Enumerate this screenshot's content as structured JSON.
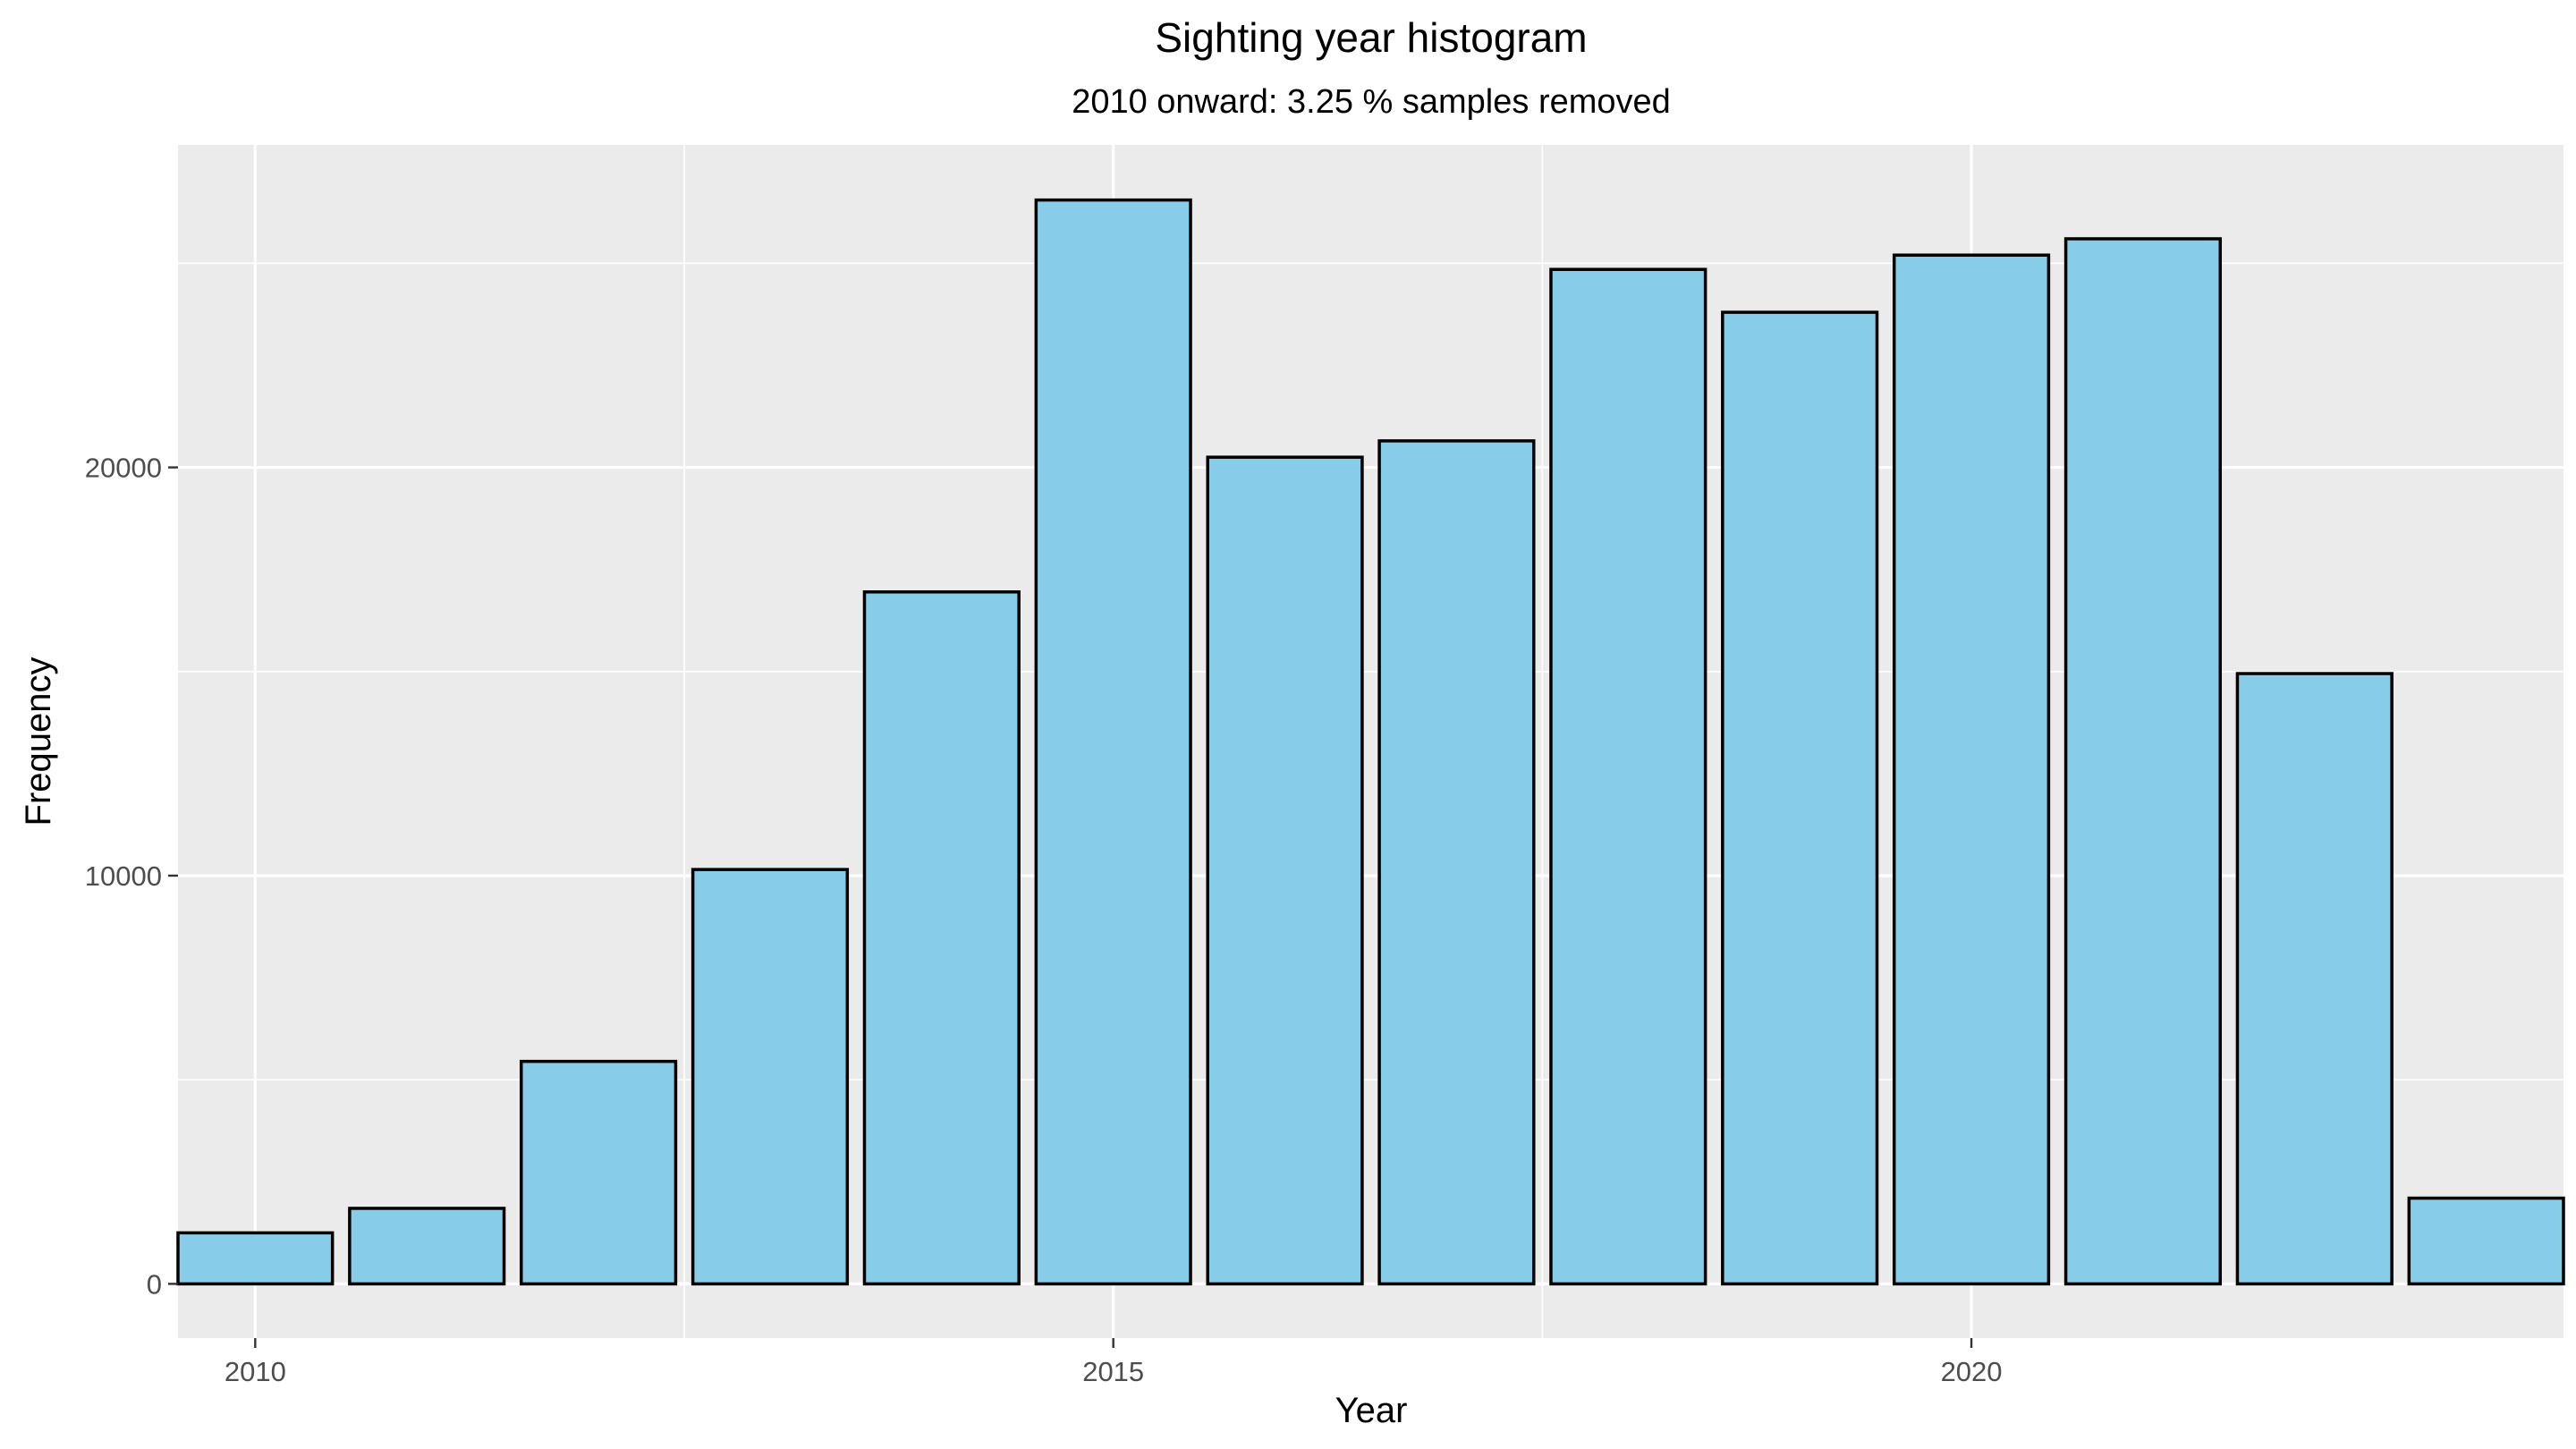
{
  "chart_data": {
    "type": "bar",
    "title": "Sighting year histogram",
    "subtitle": "2010 onward: 3.25 % samples removed",
    "xlabel": "Year",
    "ylabel": "Frequency",
    "x": [
      2010,
      2011,
      2012,
      2013,
      2014,
      2015,
      2016,
      2017,
      2018,
      2019,
      2020,
      2021,
      2022,
      2023
    ],
    "values": [
      1250,
      1850,
      5450,
      10150,
      16950,
      26550,
      20250,
      20650,
      24850,
      23800,
      25200,
      25600,
      14950,
      2100
    ],
    "xlim": [
      2009.55,
      2023.45
    ],
    "ylim": [
      -1328,
      27900
    ],
    "x_ticks": [
      2010,
      2015,
      2020
    ],
    "x_tick_labels": [
      "2010",
      "2015",
      "2020"
    ],
    "y_ticks": [
      0,
      10000,
      20000
    ],
    "y_tick_labels": [
      "0",
      "10000",
      "20000"
    ],
    "y_minor_ticks": [
      5000,
      15000,
      25000
    ],
    "grid": true,
    "colors": {
      "bar_fill": "#87CDEA",
      "bar_stroke": "#000000",
      "panel_background": "#EBEBEB",
      "grid_line": "#FFFFFF"
    }
  }
}
